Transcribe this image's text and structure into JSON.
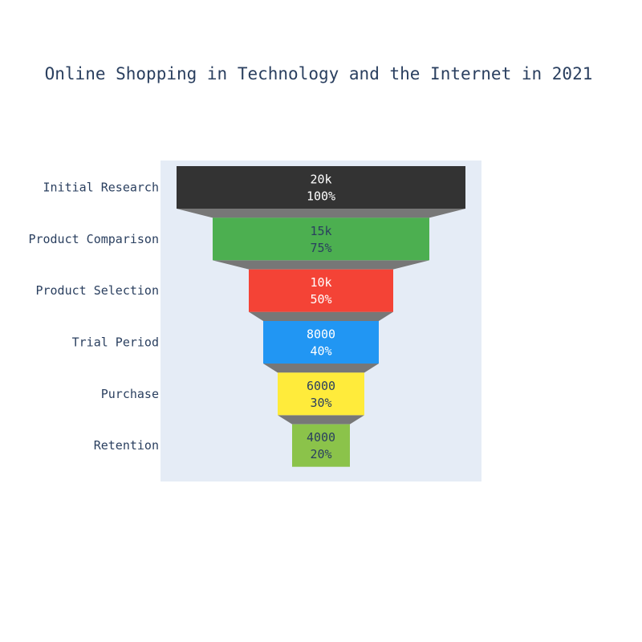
{
  "chart_data": {
    "type": "funnel",
    "title": "Online Shopping in Technology and the Internet in 2021",
    "categories": [
      "Initial Research",
      "Product Comparison",
      "Product Selection",
      "Trial Period",
      "Purchase",
      "Retention"
    ],
    "values": [
      20000,
      15000,
      10000,
      8000,
      6000,
      4000
    ],
    "value_labels": [
      "20k",
      "15k",
      "10k",
      "8000",
      "6000",
      "4000"
    ],
    "percent_labels": [
      "100%",
      "75%",
      "50%",
      "40%",
      "30%",
      "20%"
    ],
    "colors": [
      "#333333",
      "#4caf50",
      "#f44336",
      "#2196f3",
      "#ffeb3b",
      "#8bc34a"
    ],
    "label_colors": [
      "#ffffff",
      "#2a3f5f",
      "#ffffff",
      "#ffffff",
      "#2a3f5f",
      "#2a3f5f"
    ],
    "connector_color": "#777777",
    "plot_bg": "#e5ecf6",
    "text_color": "#2a3f5f"
  }
}
